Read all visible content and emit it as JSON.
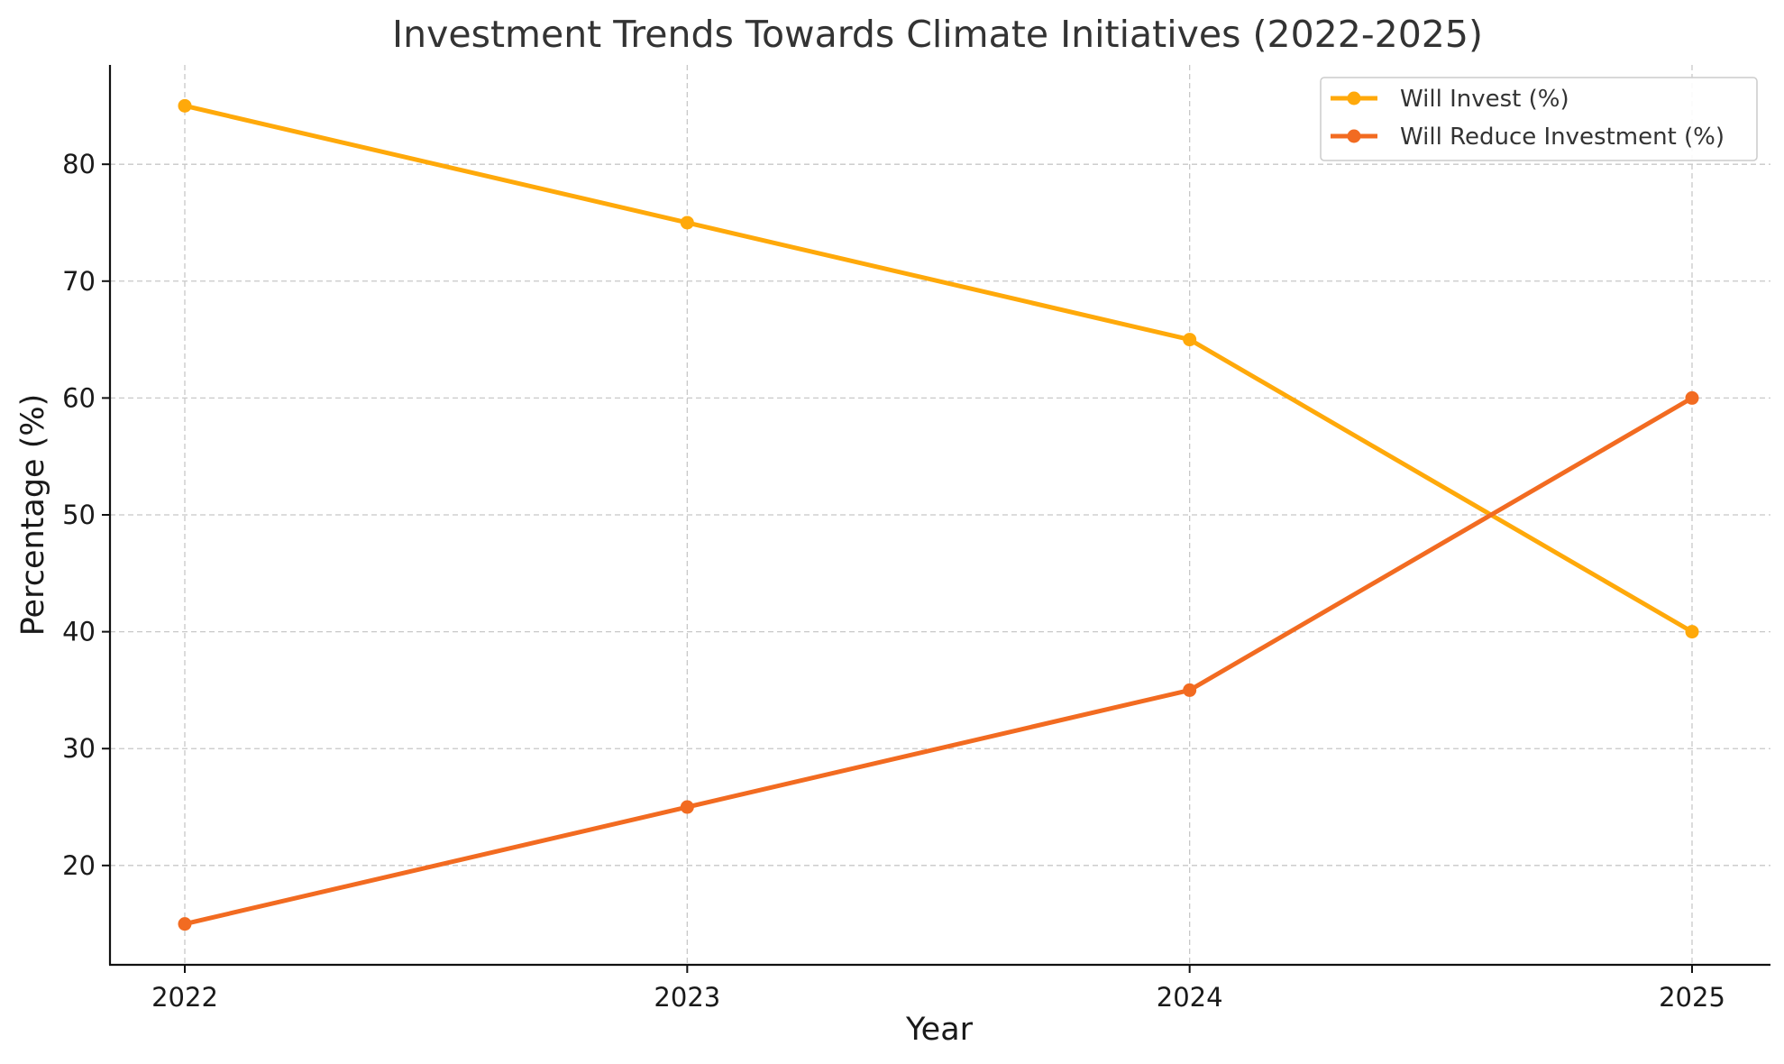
{
  "chart_data": {
    "type": "line",
    "title": "Investment Trends Towards Climate Initiatives (2022-2025)",
    "xlabel": "Year",
    "ylabel": "Percentage (%)",
    "x": [
      "2022",
      "2023",
      "2024",
      "2025"
    ],
    "yticks": [
      20,
      30,
      40,
      50,
      60,
      70,
      80
    ],
    "ylim": [
      11.5,
      88.5
    ],
    "grid": true,
    "legend_position": "top-right",
    "series": [
      {
        "name": "Will Invest (%)",
        "values": [
          85,
          75,
          65,
          40
        ],
        "color": "#FFA90A"
      },
      {
        "name": "Will Reduce Investment (%)",
        "values": [
          15,
          25,
          35,
          60
        ],
        "color": "#F26B21"
      }
    ]
  }
}
